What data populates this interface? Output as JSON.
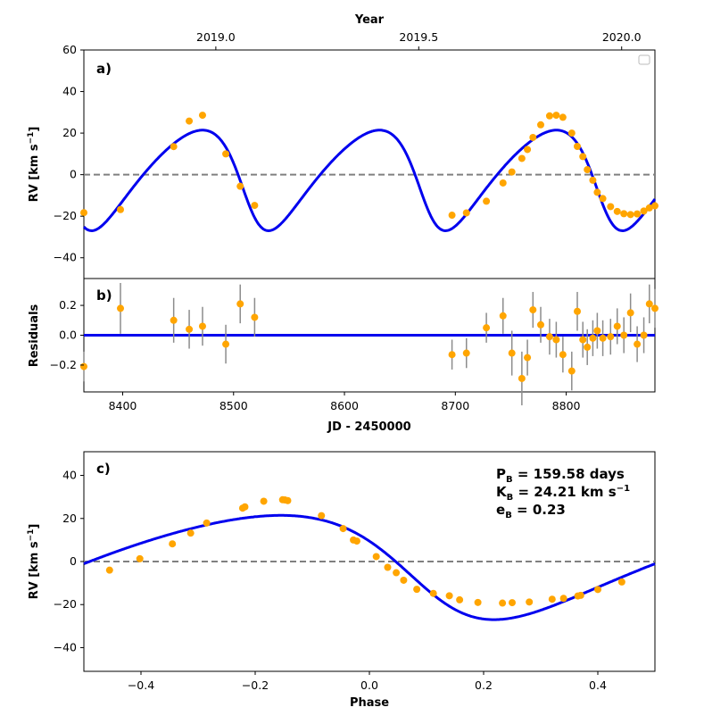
{
  "chart_data": [
    {
      "panel": "a",
      "type": "line",
      "label": "a)",
      "xlabel": "",
      "ylabel": "RV [km s",
      "ylabel_sup": "−1",
      "ylabel_close": "]",
      "xlim": [
        8365,
        8880
      ],
      "ylim": [
        -50,
        60
      ],
      "yticks": [
        -40,
        -20,
        0,
        20,
        40,
        60
      ],
      "top_axis": {
        "label": "Year",
        "ticks": [
          {
            "value": 8484,
            "label": "2019.0"
          },
          {
            "value": 8667,
            "label": "2019.5"
          },
          {
            "value": 8850,
            "label": "2020.0"
          }
        ]
      },
      "model": {
        "name": "Keplerian fit",
        "color": "#0000ee",
        "period": 159.58,
        "K": 24.21,
        "e": 0.23,
        "gamma": 0.0,
        "omega_deg": 120,
        "t_peak": 8472
      },
      "zero_line": 0,
      "legend": "top-right (empty)",
      "points": {
        "color": "#ffa500",
        "x": [
          8365,
          8398,
          8446,
          8460,
          8472,
          8493,
          8506,
          8519,
          8697,
          8710,
          8728,
          8743,
          8751,
          8760,
          8765,
          8770,
          8777,
          8785,
          8791,
          8797,
          8805,
          8810,
          8815,
          8819,
          8824,
          8828,
          8833,
          8840,
          8846,
          8852,
          8858,
          8864,
          8870,
          8875,
          8880
        ],
        "y": [
          -18.3,
          -16.8,
          13.5,
          25.8,
          28.6,
          10.0,
          -5.6,
          -14.8,
          -19.5,
          -18.4,
          -12.8,
          -4.0,
          1.3,
          7.8,
          12.1,
          17.9,
          24.0,
          28.3,
          28.6,
          27.6,
          20.0,
          13.6,
          8.7,
          2.4,
          -2.7,
          -8.5,
          -11.5,
          -15.4,
          -17.7,
          -18.8,
          -19.2,
          -18.9,
          -17.5,
          -16.0,
          -15.0
        ]
      }
    },
    {
      "panel": "b",
      "type": "scatter",
      "label": "b)",
      "xlabel": "JD - 2450000",
      "ylabel": "Residuals",
      "xlim": [
        8365,
        8880
      ],
      "ylim": [
        -0.38,
        0.38
      ],
      "xticks": [
        8400,
        8500,
        8600,
        8700,
        8800
      ],
      "yticks": [
        -0.2,
        0.0,
        0.2
      ],
      "ytick_labels": [
        "−0.2",
        "0.0",
        "0.2"
      ],
      "zero_line": 0,
      "points": {
        "color": "#ffa500",
        "x": [
          8365,
          8398,
          8446,
          8460,
          8472,
          8493,
          8506,
          8519,
          8697,
          8710,
          8728,
          8743,
          8751,
          8760,
          8765,
          8770,
          8777,
          8785,
          8791,
          8797,
          8805,
          8810,
          8815,
          8819,
          8824,
          8828,
          8833,
          8840,
          8846,
          8852,
          8858,
          8864,
          8870,
          8875,
          8880
        ],
        "y": [
          -0.21,
          0.18,
          0.1,
          0.04,
          0.06,
          -0.06,
          0.21,
          0.12,
          -0.13,
          -0.12,
          0.05,
          0.13,
          -0.12,
          -0.29,
          -0.15,
          0.17,
          0.07,
          -0.01,
          -0.03,
          -0.13,
          -0.24,
          0.16,
          -0.03,
          -0.08,
          -0.02,
          0.03,
          -0.02,
          -0.01,
          0.06,
          0.0,
          0.15,
          -0.06,
          0.0,
          0.21,
          0.18
        ],
        "err": [
          0.1,
          0.17,
          0.15,
          0.13,
          0.13,
          0.13,
          0.13,
          0.13,
          0.1,
          0.1,
          0.1,
          0.12,
          0.15,
          0.18,
          0.12,
          0.12,
          0.12,
          0.12,
          0.12,
          0.12,
          0.13,
          0.13,
          0.12,
          0.12,
          0.12,
          0.12,
          0.12,
          0.12,
          0.12,
          0.12,
          0.13,
          0.12,
          0.12,
          0.13,
          0.13
        ]
      }
    },
    {
      "panel": "c",
      "type": "line",
      "label": "c)",
      "xlabel": "Phase",
      "ylabel": "RV [km s",
      "ylabel_sup": "−1",
      "ylabel_close": "]",
      "xlim": [
        -0.5,
        0.5
      ],
      "ylim": [
        -51,
        51
      ],
      "xticks": [
        -0.4,
        -0.2,
        0.0,
        0.2,
        0.4
      ],
      "xtick_labels": [
        "−0.4",
        "−0.2",
        "0.0",
        "0.2",
        "0.4"
      ],
      "yticks": [
        -40,
        -20,
        0,
        20,
        40
      ],
      "ytick_labels": [
        "−40",
        "−20",
        "0",
        "20",
        "40"
      ],
      "zero_line": 0,
      "model": {
        "name": "phase-folded fit",
        "color": "#0000ee",
        "e": 0.23,
        "K": 24.21,
        "omega_deg": 120
      },
      "annotations": [
        {
          "main": "P",
          "sub": "B",
          "text": " = 159.58 days",
          "sup": ""
        },
        {
          "main": "K",
          "sub": "B",
          "text": " = 24.21 km s",
          "sup": "−1"
        },
        {
          "main": "e",
          "sub": "B",
          "text": " = 0.23",
          "sup": ""
        }
      ],
      "points": {
        "color": "#ffa500",
        "x": [
          -0.455,
          -0.402,
          -0.345,
          -0.313,
          -0.285,
          -0.222,
          -0.218,
          -0.185,
          -0.152,
          -0.148,
          -0.143,
          -0.084,
          -0.046,
          -0.028,
          -0.022,
          0.012,
          0.032,
          0.047,
          0.06,
          0.083,
          0.112,
          0.14,
          0.158,
          0.19,
          0.233,
          0.25,
          0.28,
          0.32,
          0.34,
          0.365,
          0.37,
          0.4,
          0.442
        ],
        "y": [
          -4.0,
          1.3,
          8.2,
          13.2,
          17.9,
          24.8,
          25.4,
          28.0,
          28.7,
          28.6,
          28.3,
          21.3,
          15.3,
          10.0,
          9.5,
          2.3,
          -2.7,
          -5.2,
          -8.7,
          -12.9,
          -14.8,
          -15.9,
          -17.8,
          -19.0,
          -19.3,
          -19.1,
          -18.8,
          -17.5,
          -17.1,
          -16.0,
          -15.7,
          -13.0,
          -9.5
        ]
      }
    }
  ]
}
